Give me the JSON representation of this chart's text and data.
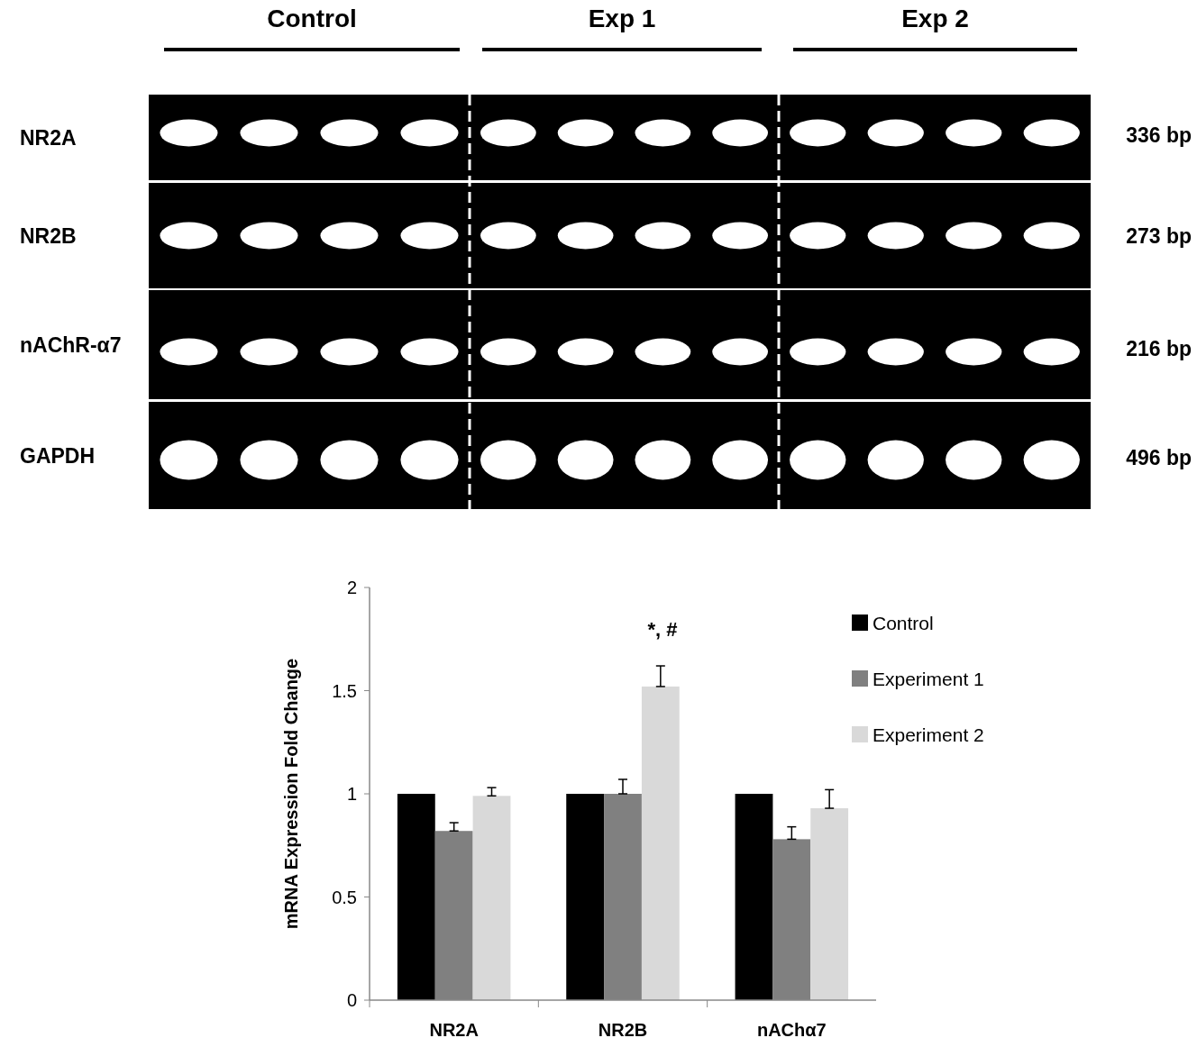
{
  "chart_data": [
    {
      "type": "other",
      "categories": [
        "Control",
        "Exp 1",
        "Exp 2"
      ],
      "y_categories": [
        "NR2A",
        "NR2B",
        "nAChR-α7",
        "GAPDH"
      ],
      "y2_categories": [
        "336 bp",
        "273 bp",
        "216 bp",
        "496 bp"
      ]
    },
    {
      "type": "bar",
      "ylabel": "mRNA Expression Fold Change",
      "categories": [
        "NR2A",
        "NR2B",
        "nAChα7"
      ],
      "series": [
        {
          "name": "Control",
          "color": "#000000",
          "values": [
            1,
            1,
            1
          ]
        },
        {
          "name": "Experiment 1",
          "color": "#808080",
          "values": [
            0.82,
            1.0,
            0.78
          ],
          "errors": [
            [
              0.82,
              0.86
            ],
            [
              1.0,
              1.07
            ],
            [
              0.78,
              0.84
            ]
          ]
        },
        {
          "name": "Experiment 2",
          "color": "#d9d9d9",
          "values": [
            0.99,
            1.52,
            0.93
          ],
          "errors": [
            [
              0.99,
              1.03
            ],
            [
              1.52,
              1.62
            ],
            [
              0.93,
              1.02
            ]
          ]
        }
      ],
      "ylim": [
        0,
        2
      ],
      "yticks": [
        0,
        0.5,
        1,
        1.5,
        2
      ],
      "grid": false,
      "legend": "right",
      "annotations": [
        "*, #"
      ]
    }
  ]
}
